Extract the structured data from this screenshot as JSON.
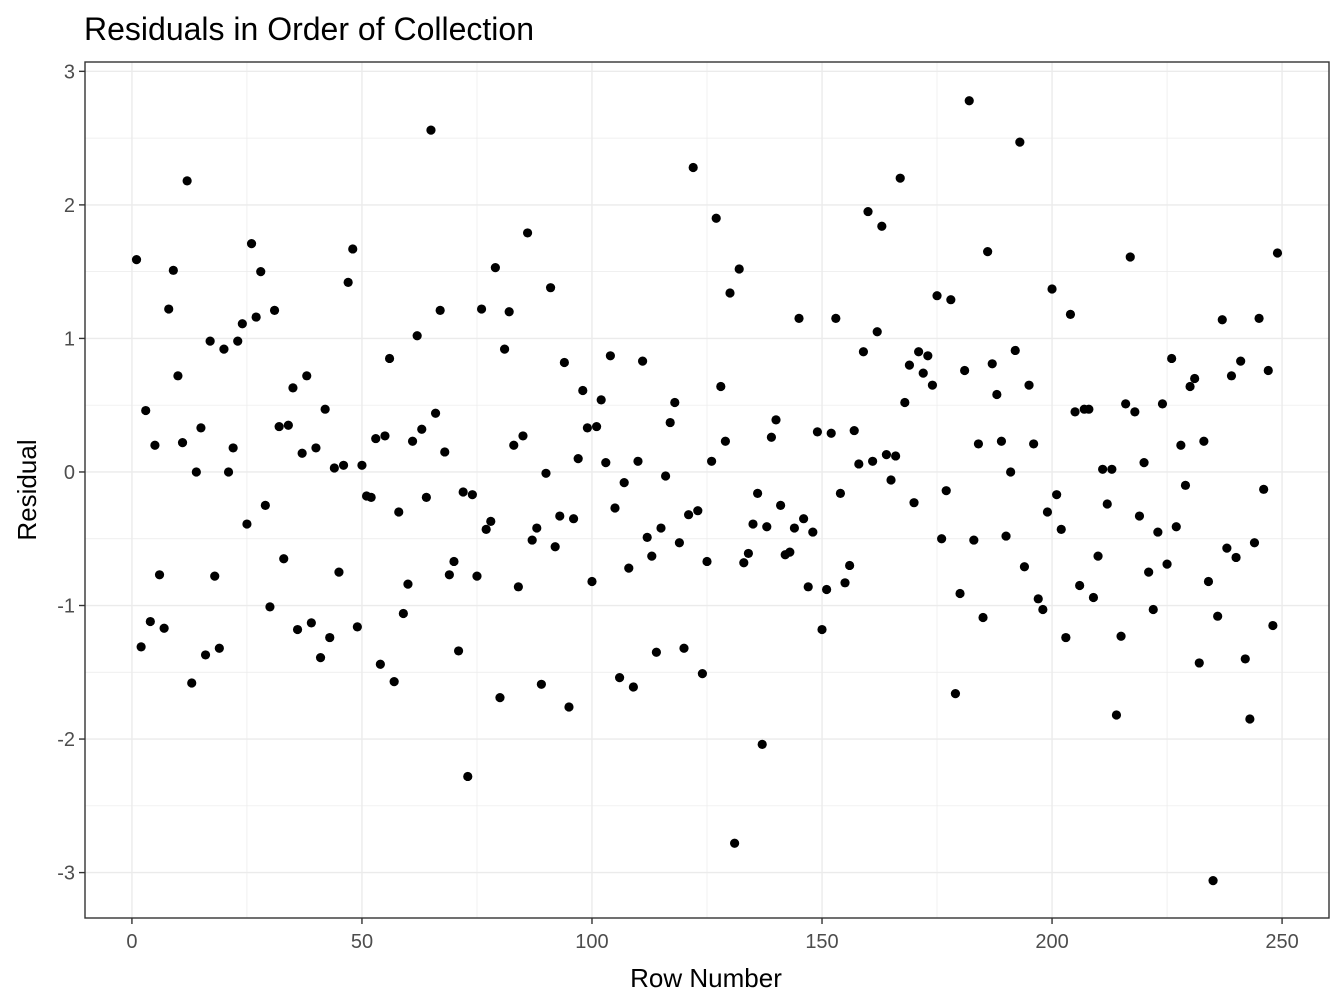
{
  "chart_data": {
    "type": "scatter",
    "title": "Residuals in Order of Collection",
    "xlabel": "Row Number",
    "ylabel": "Residual",
    "xlim": [
      -10.2,
      260.2
    ],
    "ylim": [
      -3.34,
      3.07
    ],
    "x_ticks": [
      0,
      50,
      100,
      150,
      200,
      250
    ],
    "x_tick_labels": [
      "0",
      "50",
      "100",
      "150",
      "200",
      "250"
    ],
    "y_ticks": [
      -3,
      -2,
      -1,
      0,
      1,
      2,
      3
    ],
    "y_tick_labels": [
      "-3",
      "-2",
      "-1",
      "0",
      "1",
      "2",
      "3"
    ],
    "grid": true,
    "point_color": "#000000",
    "points": {
      "x": [
        1,
        2,
        3,
        4,
        5,
        6,
        7,
        8,
        9,
        10,
        11,
        12,
        13,
        14,
        15,
        16,
        17,
        18,
        19,
        20,
        21,
        22,
        23,
        24,
        25,
        26,
        27,
        28,
        29,
        30,
        31,
        32,
        33,
        34,
        35,
        36,
        37,
        38,
        39,
        40,
        41,
        42,
        43,
        44,
        45,
        46,
        47,
        48,
        49,
        50,
        51,
        52,
        53,
        54,
        55,
        56,
        57,
        58,
        59,
        60,
        61,
        62,
        63,
        64,
        65,
        66,
        67,
        68,
        69,
        70,
        71,
        72,
        73,
        74,
        75,
        76,
        77,
        78,
        79,
        80,
        81,
        82,
        83,
        84,
        85,
        86,
        87,
        88,
        89,
        90,
        91,
        92,
        93,
        94,
        95,
        96,
        97,
        98,
        99,
        100,
        101,
        102,
        103,
        104,
        105,
        106,
        107,
        108,
        109,
        110,
        111,
        112,
        113,
        114,
        115,
        116,
        117,
        118,
        119,
        120,
        121,
        122,
        123,
        124,
        125,
        126,
        127,
        128,
        129,
        130,
        131,
        132,
        133,
        134,
        135,
        136,
        137,
        138,
        139,
        140,
        141,
        142,
        143,
        144,
        145,
        146,
        147,
        148,
        149,
        150,
        151,
        152,
        153,
        154,
        155,
        156,
        157,
        158,
        159,
        160,
        161,
        162,
        163,
        164,
        165,
        166,
        167,
        168,
        169,
        170,
        171,
        172,
        173,
        174,
        175,
        176,
        177,
        178,
        179,
        180,
        181,
        182,
        183,
        184,
        185,
        186,
        187,
        188,
        189,
        190,
        191,
        192,
        193,
        194,
        195,
        196,
        197,
        198,
        199,
        200,
        201,
        202,
        203,
        204,
        205,
        206,
        207,
        208,
        209,
        210,
        211,
        212,
        213,
        214,
        215,
        216,
        217,
        218,
        219,
        220,
        221,
        222,
        223,
        224,
        225,
        226,
        227,
        228,
        229,
        230,
        231,
        232,
        233,
        234,
        235,
        236,
        237,
        238,
        239,
        240,
        241,
        242,
        243,
        244,
        245,
        246,
        247,
        248,
        249
      ],
      "y": [
        1.59,
        -1.31,
        0.46,
        -1.12,
        0.2,
        -0.77,
        -1.17,
        1.22,
        1.51,
        0.72,
        0.22,
        2.18,
        -1.58,
        0.0,
        0.33,
        -1.37,
        0.98,
        -0.78,
        -1.32,
        0.92,
        0.0,
        0.18,
        0.98,
        1.11,
        -0.39,
        1.71,
        1.16,
        1.5,
        -0.25,
        -1.01,
        1.21,
        0.34,
        -0.65,
        0.35,
        0.63,
        -1.18,
        0.14,
        0.72,
        -1.13,
        0.18,
        -1.39,
        0.47,
        -1.24,
        0.03,
        -0.75,
        0.05,
        1.42,
        1.67,
        -1.16,
        0.05,
        -0.18,
        -0.19,
        0.25,
        -1.44,
        0.27,
        0.85,
        -1.57,
        -0.3,
        -1.06,
        -0.84,
        0.23,
        1.02,
        0.32,
        -0.19,
        2.56,
        0.44,
        1.21,
        0.15,
        -0.77,
        -0.67,
        -1.34,
        -0.15,
        -2.28,
        -0.17,
        -0.78,
        1.22,
        -0.43,
        -0.37,
        1.53,
        -1.69,
        0.92,
        1.2,
        0.2,
        -0.86,
        0.27,
        1.79,
        -0.51,
        -0.42,
        -1.59,
        -0.01,
        1.38,
        -0.56,
        -0.33,
        0.82,
        -1.76,
        -0.35,
        0.1,
        0.61,
        0.33,
        -0.82,
        0.34,
        0.54,
        0.07,
        0.87,
        -0.27,
        -1.54,
        -0.08,
        -0.72,
        -1.61,
        0.08,
        0.83,
        -0.49,
        -0.63,
        -1.35,
        -0.42,
        -0.03,
        0.37,
        0.52,
        -0.53,
        -1.32,
        -0.32,
        2.28,
        -0.29,
        -1.51,
        -0.67,
        0.08,
        1.9,
        0.64,
        0.23,
        1.34,
        -2.78,
        1.52,
        -0.68,
        -0.61,
        -0.39,
        -0.16,
        -2.04,
        -0.41,
        0.26,
        0.39,
        -0.25,
        -0.62,
        -0.6,
        -0.42,
        1.15,
        -0.35,
        -0.86,
        -0.45,
        0.3,
        -1.18,
        -0.88,
        0.29,
        1.15,
        -0.16,
        -0.83,
        -0.7,
        0.31,
        0.06,
        0.9,
        1.95,
        0.08,
        1.05,
        1.84,
        0.13,
        -0.06,
        0.12,
        2.2,
        0.52,
        0.8,
        -0.23,
        0.9,
        0.74,
        0.87,
        0.65,
        1.32,
        -0.5,
        -0.14,
        1.29,
        -1.66,
        -0.91,
        0.76,
        2.78,
        -0.51,
        0.21,
        -1.09,
        1.65,
        0.81,
        0.58,
        0.23,
        -0.48,
        0.0,
        0.91,
        2.47,
        -0.71,
        0.65,
        0.21,
        -0.95,
        -1.03,
        -0.3,
        1.37,
        -0.17,
        -0.43,
        -1.24,
        1.18,
        0.45,
        -0.85,
        0.47,
        0.47,
        -0.94,
        -0.63,
        0.02,
        -0.24,
        0.02,
        -1.82,
        -1.23,
        0.51,
        1.61,
        0.45,
        -0.33,
        0.07,
        -0.75,
        -1.03,
        -0.45,
        0.51,
        -0.69,
        0.85,
        -0.41,
        0.2,
        -0.1,
        0.64,
        0.7,
        -1.43,
        0.23,
        -0.82,
        -3.06,
        -1.08,
        1.14,
        -0.57,
        0.72,
        -0.64,
        0.83,
        -1.4,
        -1.85,
        -0.53,
        1.15,
        -0.13,
        0.76,
        -1.15,
        1.64
      ]
    }
  }
}
